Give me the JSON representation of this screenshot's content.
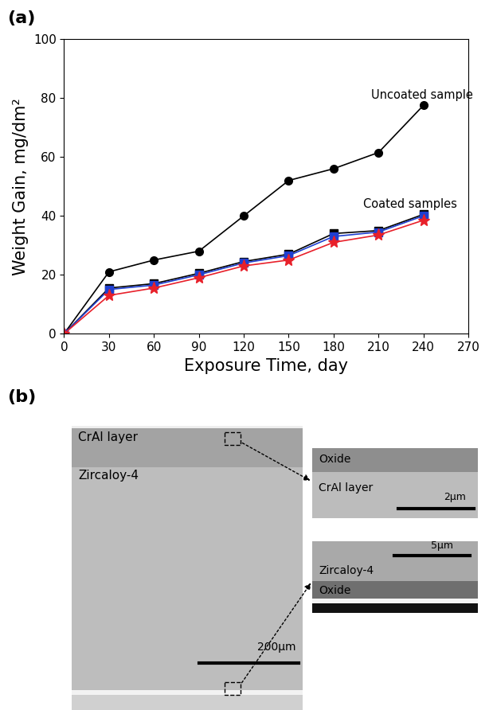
{
  "chart_data": {
    "type": "line",
    "title": "(a)",
    "x_label": "Exposure Time, day",
    "y_label": "Weight Gain, mg/dm²",
    "x": [
      0,
      30,
      60,
      90,
      120,
      150,
      180,
      210,
      240
    ],
    "series": [
      {
        "color": "#000000",
        "marker": "o",
        "values": [
          0,
          21,
          25,
          28,
          40,
          52,
          56,
          61.5,
          77.5
        ]
      },
      {
        "color": "#000000",
        "marker": "s",
        "values": [
          0,
          15.5,
          17,
          20.5,
          24.5,
          27,
          34,
          35,
          40.5
        ]
      },
      {
        "color": "#1f3fd0",
        "marker": "s",
        "values": [
          0,
          15,
          16.5,
          20,
          24,
          26.5,
          33,
          34.5,
          40
        ]
      },
      {
        "color": "#e8202a",
        "marker": "*",
        "values": [
          0,
          13,
          15.5,
          19,
          23,
          25,
          31,
          33.5,
          38.5
        ]
      }
    ],
    "annotations": [
      {
        "text": "Uncoated sample",
        "x": 205,
        "y": 81
      },
      {
        "text": "Coated samples",
        "x": 200,
        "y": 44
      }
    ],
    "xlim": [
      0,
      270
    ],
    "xticks": [
      0,
      30,
      60,
      90,
      120,
      150,
      180,
      210,
      240,
      270
    ],
    "ylim": [
      0,
      100
    ],
    "yticks": [
      0,
      20,
      40,
      60,
      80,
      100
    ],
    "grid": false
  },
  "micrograph": {
    "label": "(b)",
    "main": {
      "layers": [
        "CrAl layer",
        "Zircaloy-4"
      ],
      "scale_bar": "200μm"
    },
    "insets": [
      {
        "texts": [
          "Oxide",
          "CrAl layer"
        ],
        "scale_bar": "2μm"
      },
      {
        "texts": [
          "Zircaloy-4",
          "Oxide"
        ],
        "scale_bar": "5μm"
      }
    ]
  }
}
